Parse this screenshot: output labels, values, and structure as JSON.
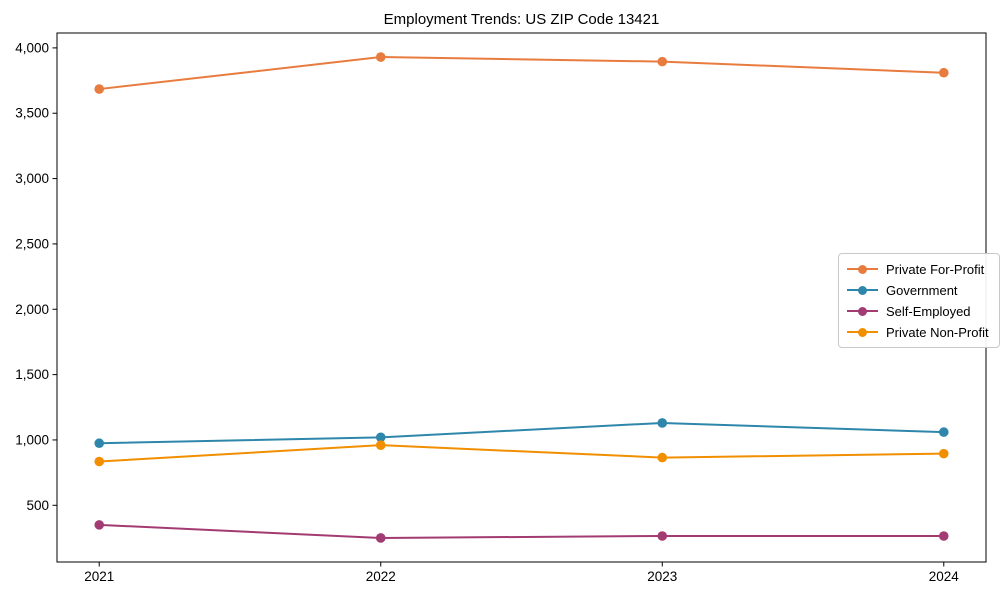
{
  "figure": {
    "background": "#ffffff",
    "text_color": "#000000",
    "axis_color": "#000000"
  },
  "chart_data": {
    "type": "line",
    "title": "Employment Trends: US ZIP Code 13421",
    "xlabel": "",
    "ylabel": "",
    "grid": false,
    "legend_position": "center right",
    "x": [
      2021,
      2022,
      2023,
      2024
    ],
    "x_tick_labels": [
      "2021",
      "2022",
      "2023",
      "2024"
    ],
    "xlim": [
      2020.85,
      2024.15
    ],
    "ylim": [
      66,
      4114
    ],
    "yticks": [
      500,
      1000,
      1500,
      2000,
      2500,
      3000,
      3500,
      4000
    ],
    "y_tick_labels": [
      "500",
      "1,000",
      "1,500",
      "2,000",
      "2,500",
      "3,000",
      "3,500",
      "4,000"
    ],
    "series": [
      {
        "name": "Private For-Profit",
        "color": "#E87C3E",
        "values": [
          3685,
          3930,
          3895,
          3810
        ]
      },
      {
        "name": "Government",
        "color": "#2E86AB",
        "values": [
          975,
          1020,
          1130,
          1060
        ]
      },
      {
        "name": "Self-Employed",
        "color": "#A23B72",
        "values": [
          350,
          250,
          265,
          265
        ]
      },
      {
        "name": "Private Non-Profit",
        "color": "#F18F01",
        "values": [
          835,
          960,
          865,
          895
        ]
      }
    ]
  }
}
